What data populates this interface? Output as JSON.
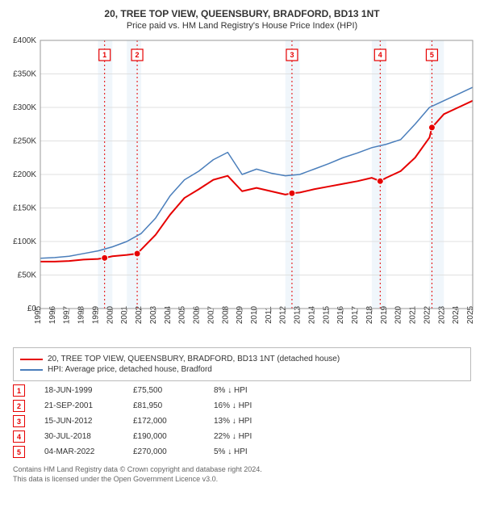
{
  "title": "20, TREE TOP VIEW, QUEENSBURY, BRADFORD, BD13 1NT",
  "subtitle": "Price paid vs. HM Land Registry's House Price Index (HPI)",
  "chart": {
    "type": "line",
    "background_color": "#ffffff",
    "plot_border_color": "#999999",
    "grid_color": "#e0e0e0",
    "x_year_min": 1995,
    "x_year_max": 2025,
    "xtick_step": 1,
    "ylim": [
      0,
      400000
    ],
    "ytick_step": 50000,
    "ytick_labels": [
      "£0",
      "£50K",
      "£100K",
      "£150K",
      "£200K",
      "£250K",
      "£300K",
      "£350K",
      "£400K"
    ],
    "shade_bands_years": [
      [
        1999,
        2000
      ],
      [
        2001,
        2002
      ],
      [
        2012,
        2013
      ],
      [
        2018,
        2019
      ],
      [
        2022,
        2023
      ]
    ],
    "shade_color": "#f0f6fb",
    "series": [
      {
        "id": "price_paid",
        "label": "20, TREE TOP VIEW, QUEENSBURY, BRADFORD, BD13 1NT (detached house)",
        "color": "#e60000",
        "width": 2,
        "points": [
          [
            1995.0,
            70000
          ],
          [
            1996.0,
            70000
          ],
          [
            1997.0,
            71000
          ],
          [
            1998.0,
            73000
          ],
          [
            1999.0,
            74000
          ],
          [
            1999.46,
            75500
          ],
          [
            2000.0,
            78000
          ],
          [
            2001.0,
            80000
          ],
          [
            2001.72,
            81950
          ],
          [
            2002.0,
            88000
          ],
          [
            2003.0,
            110000
          ],
          [
            2004.0,
            140000
          ],
          [
            2005.0,
            165000
          ],
          [
            2006.0,
            178000
          ],
          [
            2007.0,
            192000
          ],
          [
            2008.0,
            198000
          ],
          [
            2009.0,
            175000
          ],
          [
            2010.0,
            180000
          ],
          [
            2011.0,
            175000
          ],
          [
            2012.0,
            170000
          ],
          [
            2012.46,
            172000
          ],
          [
            2013.0,
            173000
          ],
          [
            2014.0,
            178000
          ],
          [
            2015.0,
            182000
          ],
          [
            2016.0,
            186000
          ],
          [
            2017.0,
            190000
          ],
          [
            2018.0,
            195000
          ],
          [
            2018.58,
            190000
          ],
          [
            2019.0,
            195000
          ],
          [
            2020.0,
            205000
          ],
          [
            2021.0,
            225000
          ],
          [
            2022.0,
            255000
          ],
          [
            2022.17,
            270000
          ],
          [
            2023.0,
            290000
          ],
          [
            2024.0,
            300000
          ],
          [
            2025.0,
            310000
          ]
        ]
      },
      {
        "id": "hpi",
        "label": "HPI: Average price, detached house, Bradford",
        "color": "#4a7ebb",
        "width": 1.5,
        "points": [
          [
            1995.0,
            75000
          ],
          [
            1996.0,
            76000
          ],
          [
            1997.0,
            78000
          ],
          [
            1998.0,
            82000
          ],
          [
            1999.0,
            86000
          ],
          [
            2000.0,
            92000
          ],
          [
            2001.0,
            100000
          ],
          [
            2002.0,
            112000
          ],
          [
            2003.0,
            135000
          ],
          [
            2004.0,
            168000
          ],
          [
            2005.0,
            192000
          ],
          [
            2006.0,
            205000
          ],
          [
            2007.0,
            222000
          ],
          [
            2008.0,
            233000
          ],
          [
            2009.0,
            200000
          ],
          [
            2010.0,
            208000
          ],
          [
            2011.0,
            202000
          ],
          [
            2012.0,
            198000
          ],
          [
            2013.0,
            200000
          ],
          [
            2014.0,
            208000
          ],
          [
            2015.0,
            216000
          ],
          [
            2016.0,
            225000
          ],
          [
            2017.0,
            232000
          ],
          [
            2018.0,
            240000
          ],
          [
            2019.0,
            245000
          ],
          [
            2020.0,
            252000
          ],
          [
            2021.0,
            275000
          ],
          [
            2022.0,
            300000
          ],
          [
            2023.0,
            310000
          ],
          [
            2024.0,
            320000
          ],
          [
            2025.0,
            330000
          ]
        ]
      }
    ],
    "markers": [
      {
        "year": 1999.46,
        "value": 75500,
        "color": "#e60000"
      },
      {
        "year": 2001.72,
        "value": 81950,
        "color": "#e60000"
      },
      {
        "year": 2012.46,
        "value": 172000,
        "color": "#e60000"
      },
      {
        "year": 2018.58,
        "value": 190000,
        "color": "#e60000"
      },
      {
        "year": 2022.17,
        "value": 270000,
        "color": "#e60000"
      }
    ],
    "flags": [
      {
        "n": "1",
        "year": 1999.46,
        "color": "#e60000"
      },
      {
        "n": "2",
        "year": 2001.72,
        "color": "#e60000"
      },
      {
        "n": "3",
        "year": 2012.46,
        "color": "#e60000"
      },
      {
        "n": "4",
        "year": 2018.58,
        "color": "#e60000"
      },
      {
        "n": "5",
        "year": 2022.17,
        "color": "#e60000"
      }
    ]
  },
  "legend": [
    {
      "color": "#e60000",
      "label": "20, TREE TOP VIEW, QUEENSBURY, BRADFORD, BD13 1NT (detached house)"
    },
    {
      "color": "#4a7ebb",
      "label": "HPI: Average price, detached house, Bradford"
    }
  ],
  "transactions": [
    {
      "n": "1",
      "color": "#e60000",
      "date": "18-JUN-1999",
      "price": "£75,500",
      "hpi": "8% ↓ HPI"
    },
    {
      "n": "2",
      "color": "#e60000",
      "date": "21-SEP-2001",
      "price": "£81,950",
      "hpi": "16% ↓ HPI"
    },
    {
      "n": "3",
      "color": "#e60000",
      "date": "15-JUN-2012",
      "price": "£172,000",
      "hpi": "13% ↓ HPI"
    },
    {
      "n": "4",
      "color": "#e60000",
      "date": "30-JUL-2018",
      "price": "£190,000",
      "hpi": "22% ↓ HPI"
    },
    {
      "n": "5",
      "color": "#e60000",
      "date": "04-MAR-2022",
      "price": "£270,000",
      "hpi": "5% ↓ HPI"
    }
  ],
  "footer_line1": "Contains HM Land Registry data © Crown copyright and database right 2024.",
  "footer_line2": "This data is licensed under the Open Government Licence v3.0."
}
